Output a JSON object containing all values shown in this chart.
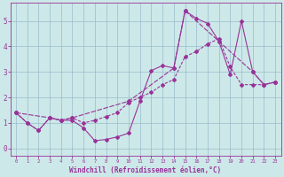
{
  "xlabel": "Windchill (Refroidissement éolien,°C)",
  "background_color": "#cce8e8",
  "grid_color": "#99bbcc",
  "line_color": "#993399",
  "xlim": [
    -0.5,
    23.5
  ],
  "ylim": [
    -0.3,
    5.7
  ],
  "xticks": [
    0,
    1,
    2,
    3,
    4,
    5,
    6,
    7,
    8,
    9,
    10,
    11,
    12,
    13,
    14,
    15,
    16,
    17,
    18,
    19,
    20,
    21,
    22,
    23
  ],
  "yticks": [
    0,
    1,
    2,
    3,
    4,
    5
  ],
  "line1_x": [
    0,
    1,
    2,
    3,
    4,
    5,
    6,
    7,
    8,
    9,
    10,
    11,
    12,
    13,
    14,
    15,
    16,
    17,
    18,
    19,
    20,
    21,
    22,
    23
  ],
  "line1_y": [
    1.4,
    1.0,
    0.7,
    1.2,
    1.1,
    1.1,
    0.8,
    0.3,
    0.35,
    0.45,
    0.6,
    1.85,
    3.05,
    3.25,
    3.15,
    5.4,
    5.1,
    4.9,
    4.2,
    2.9,
    5.0,
    3.0,
    2.5,
    2.6
  ],
  "line2_x": [
    0,
    1,
    2,
    3,
    4,
    5,
    6,
    7,
    8,
    9,
    10,
    11,
    12,
    13,
    14,
    15,
    16,
    17,
    18,
    19,
    20,
    21,
    22,
    23
  ],
  "line2_y": [
    1.4,
    1.0,
    0.7,
    1.2,
    1.1,
    1.2,
    1.0,
    1.1,
    1.25,
    1.4,
    1.8,
    2.0,
    2.2,
    2.5,
    2.7,
    3.6,
    3.8,
    4.1,
    4.3,
    3.2,
    2.5,
    2.5,
    2.5,
    2.6
  ],
  "line3_x": [
    0,
    3,
    4,
    5,
    10,
    14,
    15,
    18,
    21,
    22,
    23
  ],
  "line3_y": [
    1.4,
    1.2,
    1.1,
    1.2,
    1.85,
    3.15,
    5.4,
    4.2,
    3.0,
    2.5,
    2.6
  ],
  "xlabel_fontsize": 5.5,
  "tick_fontsize_x": 4.0,
  "tick_fontsize_y": 5.5
}
